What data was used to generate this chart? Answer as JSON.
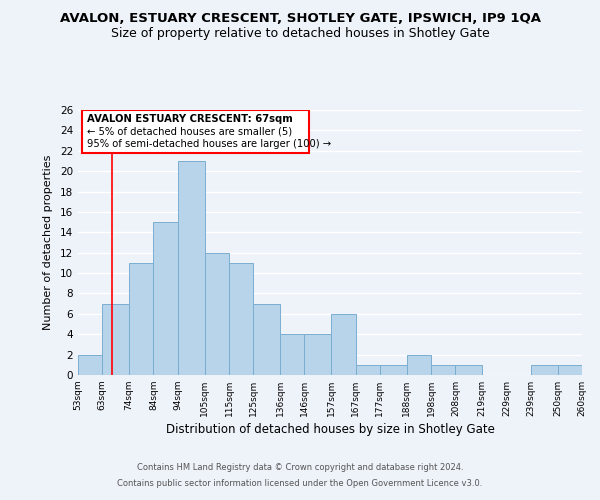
{
  "title1": "AVALON, ESTUARY CRESCENT, SHOTLEY GATE, IPSWICH, IP9 1QA",
  "title2": "Size of property relative to detached houses in Shotley Gate",
  "xlabel": "Distribution of detached houses by size in Shotley Gate",
  "ylabel": "Number of detached properties",
  "bar_edges": [
    53,
    63,
    74,
    84,
    94,
    105,
    115,
    125,
    136,
    146,
    157,
    167,
    177,
    188,
    198,
    208,
    219,
    229,
    239,
    250,
    260
  ],
  "bar_heights": [
    2,
    7,
    11,
    15,
    21,
    12,
    11,
    7,
    4,
    4,
    6,
    1,
    1,
    2,
    1,
    1,
    0,
    0,
    1,
    1
  ],
  "bar_color": "#b8d4ea",
  "bar_edgecolor": "#7aaed0",
  "xlabels": [
    "53sqm",
    "63sqm",
    "74sqm",
    "84sqm",
    "94sqm",
    "105sqm",
    "115sqm",
    "125sqm",
    "136sqm",
    "146sqm",
    "157sqm",
    "167sqm",
    "177sqm",
    "188sqm",
    "198sqm",
    "208sqm",
    "219sqm",
    "229sqm",
    "239sqm",
    "250sqm",
    "260sqm"
  ],
  "ylim": [
    0,
    26
  ],
  "yticks": [
    0,
    2,
    4,
    6,
    8,
    10,
    12,
    14,
    16,
    18,
    20,
    22,
    24,
    26
  ],
  "red_line_x": 67,
  "annotation_title": "AVALON ESTUARY CRESCENT: 67sqm",
  "annotation_line1": "← 5% of detached houses are smaller (5)",
  "annotation_line2": "95% of semi-detached houses are larger (100) →",
  "footer1": "Contains HM Land Registry data © Crown copyright and database right 2024.",
  "footer2": "Contains public sector information licensed under the Open Government Licence v3.0.",
  "background_color": "#eef2f9",
  "grid_color": "#ffffff",
  "title1_fontsize": 9.5,
  "title2_fontsize": 9.0
}
